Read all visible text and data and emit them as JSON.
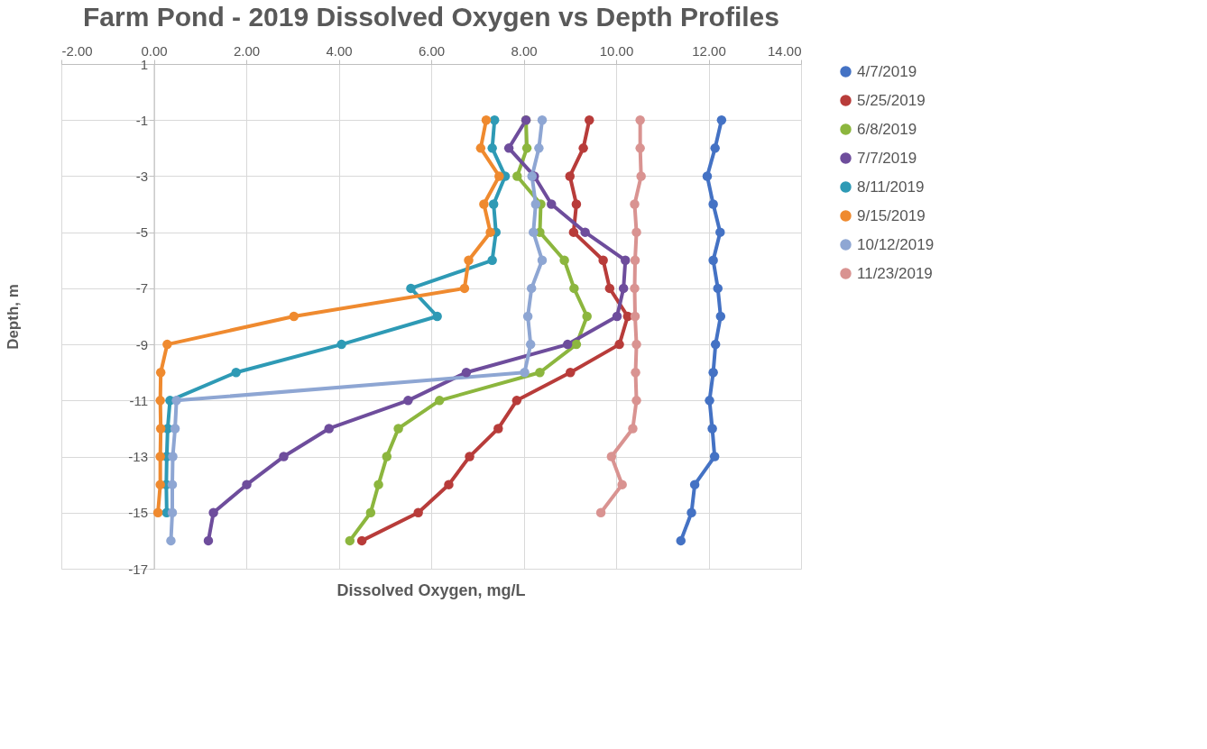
{
  "chart_data": {
    "type": "line",
    "title": "Farm Pond - 2019 Dissolved Oxygen vs Depth Profiles",
    "xlabel": "Dissolved Oxygen, mg/L",
    "ylabel": "Depth, m",
    "xlim": [
      -2,
      14
    ],
    "xticks": [
      {
        "value": -2,
        "label": "-2.00"
      },
      {
        "value": 0,
        "label": "0.00"
      },
      {
        "value": 2,
        "label": "2.00"
      },
      {
        "value": 4,
        "label": "4.00"
      },
      {
        "value": 6,
        "label": "6.00"
      },
      {
        "value": 8,
        "label": "8.00"
      },
      {
        "value": 10,
        "label": "10.00"
      },
      {
        "value": 12,
        "label": "12.00"
      },
      {
        "value": 14,
        "label": "14.00"
      }
    ],
    "ylim": [
      -17,
      1
    ],
    "yticks": [
      1,
      -1,
      -3,
      -5,
      -7,
      -9,
      -11,
      -13,
      -15,
      -17
    ],
    "grid": true,
    "legend": "right",
    "marker": "circle",
    "line_style": "solid",
    "series": [
      {
        "name": "4/7/2019",
        "color": "#4472c4",
        "x": [
          12.28,
          12.14,
          11.97,
          12.1,
          12.25,
          12.1,
          12.2,
          12.26,
          12.15,
          12.1,
          12.02,
          12.08,
          12.13,
          11.7,
          11.63,
          11.4
        ],
        "values": [
          -1,
          -2,
          -3,
          -4,
          -5,
          -6,
          -7,
          -8,
          -9,
          -10,
          -11,
          -12,
          -13,
          -14,
          -15,
          -16
        ]
      },
      {
        "name": "5/25/2019",
        "color": "#b83c3a",
        "x": [
          9.42,
          9.29,
          9.0,
          9.14,
          9.08,
          9.72,
          9.86,
          10.25,
          10.07,
          9.01,
          7.85,
          7.45,
          6.83,
          6.38,
          5.72,
          4.5
        ],
        "values": [
          -1,
          -2,
          -3,
          -4,
          -5,
          -6,
          -7,
          -8,
          -9,
          -10,
          -11,
          -12,
          -13,
          -14,
          -15,
          -16
        ]
      },
      {
        "name": "6/8/2019",
        "color": "#8cb63e",
        "x": [
          8.05,
          8.07,
          7.86,
          8.37,
          8.35,
          8.88,
          9.09,
          9.37,
          9.14,
          8.35,
          6.18,
          5.29,
          5.04,
          4.86,
          4.69,
          4.24
        ],
        "values": [
          -1,
          -2,
          -3,
          -4,
          -5,
          -6,
          -7,
          -8,
          -9,
          -10,
          -11,
          -12,
          -13,
          -14,
          -15,
          -16
        ]
      },
      {
        "name": "7/7/2019",
        "color": "#6e4d9c",
        "x": [
          8.05,
          7.68,
          8.23,
          8.6,
          9.33,
          10.2,
          10.16,
          10.02,
          8.95,
          6.76,
          5.5,
          3.79,
          2.81,
          2.01,
          1.29,
          1.18
        ],
        "values": [
          -1,
          -2,
          -3,
          -4,
          -5,
          -6,
          -7,
          -8,
          -9,
          -10,
          -11,
          -12,
          -13,
          -14,
          -15,
          -16
        ]
      },
      {
        "name": "8/11/2019",
        "color": "#2e9ab5",
        "x": [
          7.37,
          7.32,
          7.6,
          7.35,
          7.4,
          7.32,
          5.56,
          6.13,
          4.06,
          1.78,
          0.35,
          0.3,
          0.28,
          0.27,
          0.28
        ],
        "values": [
          -1,
          -2,
          -3,
          -4,
          -5,
          -6,
          -7,
          -8,
          -9,
          -10,
          -11,
          -12,
          -13,
          -14,
          -15
        ]
      },
      {
        "name": "9/15/2019",
        "color": "#ef8a2f",
        "x": [
          7.19,
          7.07,
          7.47,
          7.14,
          7.28,
          6.81,
          6.72,
          3.03,
          0.29,
          0.15,
          0.14,
          0.15,
          0.14,
          0.14,
          0.09
        ],
        "values": [
          -1,
          -2,
          -3,
          -4,
          -5,
          -6,
          -7,
          -8,
          -9,
          -10,
          -11,
          -12,
          -13,
          -14,
          -15
        ]
      },
      {
        "name": "10/12/2019",
        "color": "#8ea6d3",
        "x": [
          8.4,
          8.33,
          8.18,
          8.26,
          8.21,
          8.4,
          8.17,
          8.09,
          8.15,
          8.02,
          0.49,
          0.46,
          0.41,
          0.4,
          0.4,
          0.37
        ],
        "values": [
          -1,
          -2,
          -3,
          -4,
          -5,
          -6,
          -7,
          -8,
          -9,
          -10,
          -11,
          -12,
          -13,
          -14,
          -15,
          -16
        ]
      },
      {
        "name": "11/23/2019",
        "color": "#d99391",
        "x": [
          10.52,
          10.52,
          10.54,
          10.4,
          10.44,
          10.41,
          10.4,
          10.41,
          10.44,
          10.42,
          10.44,
          10.36,
          9.9,
          10.13,
          9.67
        ],
        "values": [
          -1,
          -2,
          -3,
          -4,
          -5,
          -6,
          -7,
          -8,
          -9,
          -10,
          -11,
          -12,
          -13,
          -14,
          -15
        ]
      }
    ]
  }
}
